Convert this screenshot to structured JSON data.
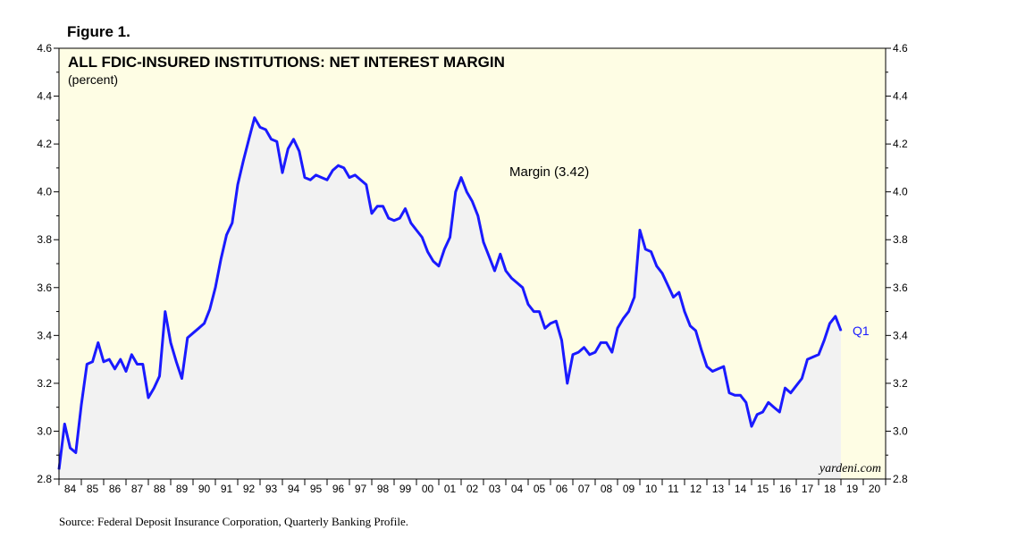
{
  "figure_label": "Figure 1.",
  "source": "Source: Federal Deposit Insurance Corporation, Quarterly Banking Profile.",
  "watermark": "yardeni.com",
  "colors": {
    "plot_bg": "#fefde4",
    "area_fill": "#f2f2f2",
    "line": "#1a1aff",
    "axis": "#000000",
    "text": "#000000"
  },
  "chart_data": {
    "type": "area",
    "title": "ALL FDIC-INSURED INSTITUTIONS: NET INTEREST MARGIN",
    "subtitle": "(percent)",
    "series_label": "Margin (3.42)",
    "end_label": "Q1",
    "ylim": [
      2.8,
      4.6
    ],
    "y_ticks": [
      "2.8",
      "3.0",
      "3.2",
      "3.4",
      "3.6",
      "3.8",
      "4.0",
      "4.2",
      "4.4",
      "4.6"
    ],
    "xlim": [
      1984.0,
      2021.0
    ],
    "x_tick_labels": [
      "84",
      "85",
      "86",
      "87",
      "88",
      "89",
      "90",
      "91",
      "92",
      "93",
      "94",
      "95",
      "96",
      "97",
      "98",
      "99",
      "00",
      "01",
      "02",
      "03",
      "04",
      "05",
      "06",
      "07",
      "08",
      "09",
      "10",
      "11",
      "12",
      "13",
      "14",
      "15",
      "16",
      "17",
      "18",
      "19",
      "20"
    ],
    "x_start_year": 1984,
    "series": [
      {
        "name": "Margin",
        "x": [
          1984.0,
          1984.25,
          1984.5,
          1984.75,
          1985.0,
          1985.25,
          1985.5,
          1985.75,
          1986.0,
          1986.25,
          1986.5,
          1986.75,
          1987.0,
          1987.25,
          1987.5,
          1987.75,
          1988.0,
          1988.25,
          1988.5,
          1988.75,
          1989.0,
          1989.25,
          1989.5,
          1989.75,
          1990.0,
          1990.25,
          1990.5,
          1990.75,
          1991.0,
          1991.25,
          1991.5,
          1991.75,
          1992.0,
          1992.25,
          1992.5,
          1992.75,
          1993.0,
          1993.25,
          1993.5,
          1993.75,
          1994.0,
          1994.25,
          1994.5,
          1994.75,
          1995.0,
          1995.25,
          1995.5,
          1995.75,
          1996.0,
          1996.25,
          1996.5,
          1996.75,
          1997.0,
          1997.25,
          1997.5,
          1997.75,
          1998.0,
          1998.25,
          1998.5,
          1998.75,
          1999.0,
          1999.25,
          1999.5,
          1999.75,
          2000.0,
          2000.25,
          2000.5,
          2000.75,
          2001.0,
          2001.25,
          2001.5,
          2001.75,
          2002.0,
          2002.25,
          2002.5,
          2002.75,
          2003.0,
          2003.25,
          2003.5,
          2003.75,
          2004.0,
          2004.25,
          2004.5,
          2004.75,
          2005.0,
          2005.25,
          2005.5,
          2005.75,
          2006.0,
          2006.25,
          2006.5,
          2006.75,
          2007.0,
          2007.25,
          2007.5,
          2007.75,
          2008.0,
          2008.25,
          2008.5,
          2008.75,
          2009.0,
          2009.25,
          2009.5,
          2009.75,
          2010.0,
          2010.25,
          2010.5,
          2010.75,
          2011.0,
          2011.25,
          2011.5,
          2011.75,
          2012.0,
          2012.25,
          2012.5,
          2012.75,
          2013.0,
          2013.25,
          2013.5,
          2013.75,
          2014.0,
          2014.25,
          2014.5,
          2014.75,
          2015.0,
          2015.25,
          2015.5,
          2015.75,
          2016.0,
          2016.25,
          2016.5,
          2016.75,
          2017.0,
          2017.25,
          2017.5,
          2017.75,
          2018.0,
          2018.25,
          2018.5,
          2018.75,
          2019.0
        ],
        "values": [
          2.84,
          3.03,
          2.93,
          2.91,
          3.11,
          3.28,
          3.29,
          3.37,
          3.29,
          3.3,
          3.26,
          3.3,
          3.25,
          3.32,
          3.28,
          3.28,
          3.14,
          3.18,
          3.23,
          3.5,
          3.37,
          3.29,
          3.22,
          3.39,
          3.41,
          3.43,
          3.45,
          3.51,
          3.6,
          3.72,
          3.82,
          3.87,
          4.03,
          4.13,
          4.22,
          4.31,
          4.27,
          4.26,
          4.22,
          4.21,
          4.08,
          4.18,
          4.22,
          4.17,
          4.06,
          4.05,
          4.07,
          4.06,
          4.05,
          4.09,
          4.11,
          4.1,
          4.06,
          4.07,
          4.05,
          4.03,
          3.91,
          3.94,
          3.94,
          3.89,
          3.88,
          3.89,
          3.93,
          3.87,
          3.84,
          3.81,
          3.75,
          3.71,
          3.69,
          3.76,
          3.81,
          4.0,
          4.06,
          4.0,
          3.96,
          3.9,
          3.79,
          3.73,
          3.67,
          3.74,
          3.67,
          3.64,
          3.62,
          3.6,
          3.53,
          3.5,
          3.5,
          3.43,
          3.45,
          3.46,
          3.38,
          3.2,
          3.32,
          3.33,
          3.35,
          3.32,
          3.33,
          3.37,
          3.37,
          3.33,
          3.43,
          3.47,
          3.5,
          3.56,
          3.84,
          3.76,
          3.75,
          3.69,
          3.66,
          3.61,
          3.56,
          3.58,
          3.5,
          3.44,
          3.42,
          3.34,
          3.27,
          3.25,
          3.26,
          3.27,
          3.16,
          3.15,
          3.15,
          3.12,
          3.02,
          3.07,
          3.08,
          3.12,
          3.1,
          3.08,
          3.18,
          3.16,
          3.19,
          3.22,
          3.3,
          3.31,
          3.32,
          3.38,
          3.45,
          3.48,
          3.42
        ]
      }
    ]
  }
}
